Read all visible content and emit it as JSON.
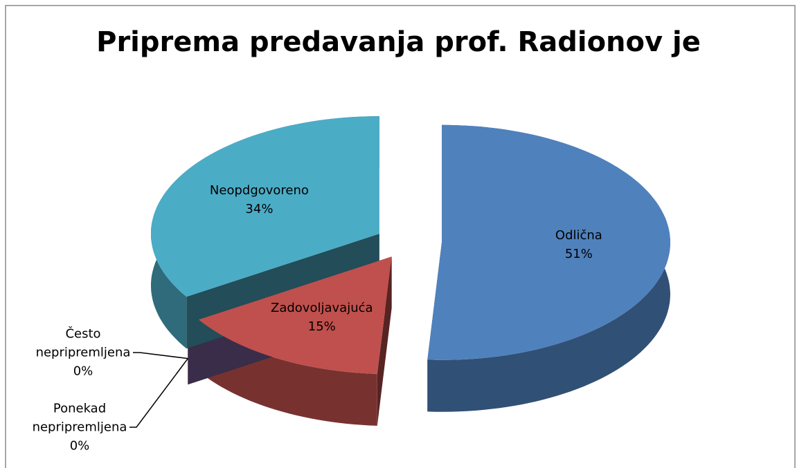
{
  "chart_data": {
    "type": "pie3d",
    "title": "Priprema predavanja prof. Radionov je",
    "categories": [
      "Odlična",
      "Zadovoljavajuća",
      "Često nepripremljena",
      "Ponekad nepripremljena",
      "Neopdgovoreno"
    ],
    "values": [
      51,
      15,
      0,
      0,
      34
    ],
    "value_labels": [
      "51%",
      "15%",
      "0%",
      "0%",
      "34%"
    ],
    "colors": [
      "#4f81bd",
      "#c0504d",
      "#9bbb59",
      "#8064a2",
      "#4bacc6"
    ]
  }
}
